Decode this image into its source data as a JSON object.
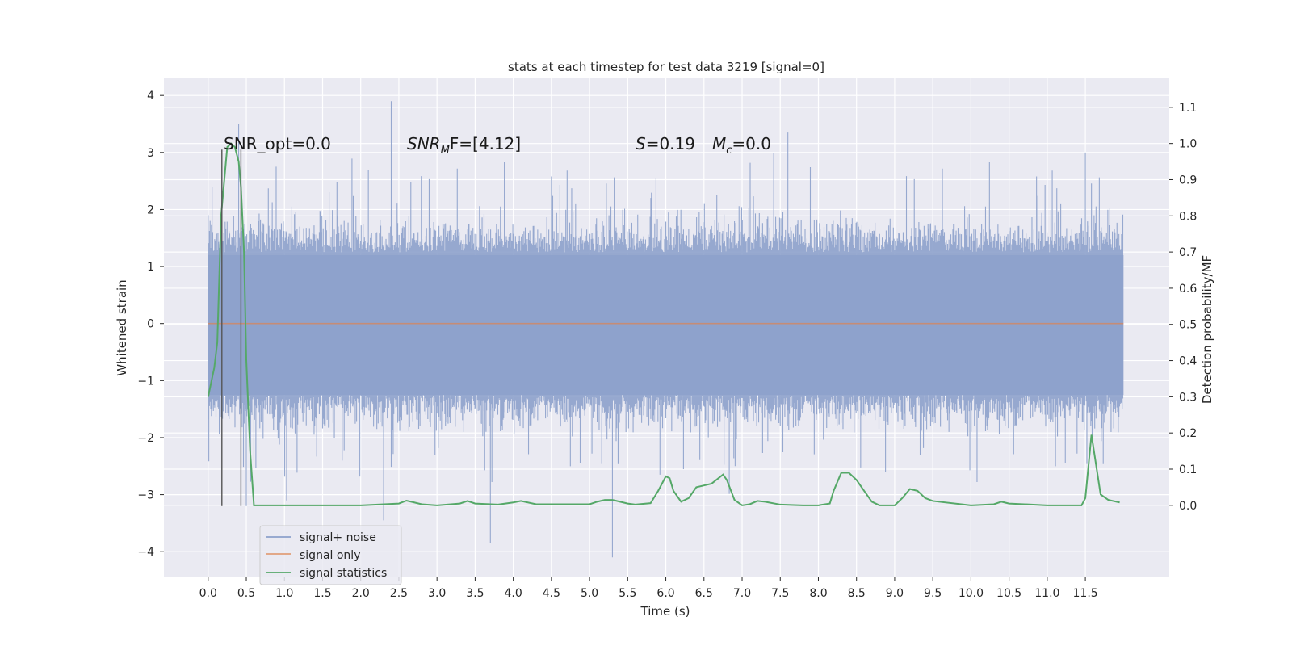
{
  "chart_data": {
    "type": "line",
    "title": "stats at each timestep for test data 3219 [signal=0]",
    "xlabel": "Time (s)",
    "ylabel": "Whitened strain",
    "ylabel_right": "Detection probability/MF",
    "xlim": [
      -0.58,
      12.6
    ],
    "ylim": [
      -4.45,
      4.3
    ],
    "ylim_right": [
      -0.199,
      1.18
    ],
    "x_ticks": [
      "0.0",
      "0.5",
      "1.0",
      "1.5",
      "2.0",
      "2.5",
      "3.0",
      "3.5",
      "4.0",
      "4.5",
      "5.0",
      "5.5",
      "6.0",
      "6.5",
      "7.0",
      "7.5",
      "8.0",
      "8.5",
      "9.0",
      "9.5",
      "10.0",
      "10.5",
      "11.0",
      "11.5"
    ],
    "y_ticks": [
      "4",
      "3",
      "2",
      "1",
      "0",
      "−1",
      "−2",
      "−3",
      "−4"
    ],
    "y_ticks_right": [
      "1.1",
      "1.0",
      "0.9",
      "0.8",
      "0.7",
      "0.6",
      "0.5",
      "0.4",
      "0.3",
      "0.2",
      "0.1",
      "0.0"
    ],
    "grid": true,
    "legend_position": "lower-left",
    "annotations": {
      "snr_opt": "SNR_opt=0.0",
      "snr_mf": "SNR",
      "snr_mf_sub": "M",
      "snr_mf_tail": "F=[4.12]",
      "s_label": "S",
      "s_value": "=0.19",
      "mc_label": "M",
      "mc_sub": "c",
      "mc_value": "=0.0"
    },
    "vertical_markers": [
      0.18,
      0.43
    ],
    "series": [
      {
        "name": "signal+ noise",
        "color": "#8da1cb",
        "style": "noise band",
        "typical_range": [
          -1.8,
          1.8
        ],
        "spikes": [
          [
            0.4,
            3.5
          ],
          [
            2.4,
            3.9
          ],
          [
            3.7,
            -3.85
          ],
          [
            5.3,
            -4.1
          ],
          [
            7.6,
            3.35
          ],
          [
            11.5,
            3.0
          ],
          [
            0.5,
            -3.2
          ],
          [
            2.3,
            -3.45
          ]
        ]
      },
      {
        "name": "signal only",
        "color": "#dd8452",
        "x": [
          0.0,
          12.0
        ],
        "y": [
          0.0,
          0.0
        ]
      },
      {
        "name": "signal statistics",
        "color": "#55a868",
        "x": [
          0.0,
          0.08,
          0.12,
          0.17,
          0.25,
          0.3,
          0.35,
          0.4,
          0.43,
          0.47,
          0.5,
          0.55,
          0.6,
          1.0,
          2.0,
          2.5,
          2.6,
          2.8,
          3.0,
          3.3,
          3.4,
          3.5,
          3.8,
          4.0,
          4.1,
          4.3,
          5.0,
          5.1,
          5.2,
          5.3,
          5.4,
          5.5,
          5.6,
          5.8,
          5.9,
          6.0,
          6.05,
          6.1,
          6.2,
          6.3,
          6.4,
          6.5,
          6.6,
          6.75,
          6.8,
          6.9,
          7.0,
          7.1,
          7.2,
          7.3,
          7.5,
          7.8,
          8.0,
          8.15,
          8.2,
          8.3,
          8.4,
          8.5,
          8.6,
          8.7,
          8.8,
          9.0,
          9.1,
          9.2,
          9.3,
          9.4,
          9.5,
          10.0,
          10.3,
          10.4,
          10.5,
          11.0,
          11.45,
          11.5,
          11.58,
          11.7,
          11.8,
          11.95
        ],
        "y": [
          0.3,
          0.38,
          0.45,
          0.8,
          0.99,
          1.0,
          0.99,
          0.95,
          0.88,
          0.7,
          0.4,
          0.15,
          0.0,
          0.0,
          0.0,
          0.005,
          0.013,
          0.003,
          0.0,
          0.005,
          0.012,
          0.005,
          0.002,
          0.008,
          0.012,
          0.003,
          0.003,
          0.01,
          0.015,
          0.015,
          0.01,
          0.005,
          0.002,
          0.006,
          0.04,
          0.08,
          0.075,
          0.04,
          0.01,
          0.02,
          0.05,
          0.055,
          0.06,
          0.085,
          0.07,
          0.015,
          0.0,
          0.003,
          0.012,
          0.01,
          0.002,
          0.0,
          0.0,
          0.005,
          0.04,
          0.09,
          0.09,
          0.07,
          0.04,
          0.01,
          0.0,
          0.0,
          0.02,
          0.045,
          0.04,
          0.02,
          0.012,
          0.0,
          0.003,
          0.01,
          0.005,
          0.0,
          0.0,
          0.02,
          0.195,
          0.03,
          0.015,
          0.008
        ]
      }
    ]
  }
}
